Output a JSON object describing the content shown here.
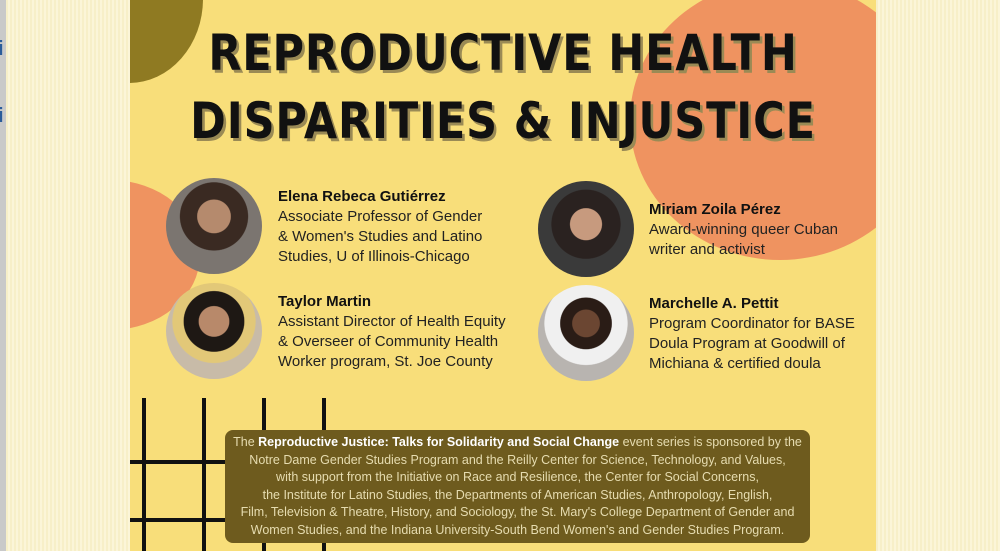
{
  "colors": {
    "poster_bg": "#f8de7a",
    "olive": "#8f7a22",
    "orange": "#ef9360",
    "text_box": "#6e5b1e"
  },
  "viewer": {
    "left_icons": [
      "i",
      "i"
    ]
  },
  "poster": {
    "title_line1": "REPRODUCTIVE HEALTH",
    "title_line2": "DISPARITIES & INJUSTICE",
    "speakers": [
      {
        "name": "Elena Rebeca Gutiérrez",
        "desc": [
          "Associate Professor of Gender",
          "& Women's Studies and Latino",
          "Studies, U of Illinois-Chicago"
        ]
      },
      {
        "name": "Miriam Zoila Pérez",
        "desc": [
          "Award-winning queer Cuban",
          "writer and activist"
        ]
      },
      {
        "name": "Taylor Martin",
        "desc": [
          "Assistant Director of Health Equity",
          "& Overseer of Community Health",
          "Worker program, St. Joe County"
        ]
      },
      {
        "name": "Marchelle A. Pettit",
        "desc": [
          "Program Coordinator for BASE",
          "Doula Program at Goodwill of",
          "Michiana & certified doula"
        ]
      }
    ],
    "sponsor": {
      "pre": "The ",
      "series": "Reproductive Justice: Talks for Solidarity and Social Change",
      "lines": [
        " event series is sponsored by the",
        "Notre Dame Gender Studies Program and the Reilly Center for Science, Technology, and Values,",
        "with support from the Initiative on Race and Resilience, the Center for Social Concerns,",
        "the Institute for Latino Studies, the Departments of American Studies, Anthropology, English,",
        "Film, Television & Theatre, History, and Sociology, the St. Mary's College Department of Gender and",
        "Women Studies, and the Indiana University-South Bend Women's and Gender Studies Program."
      ]
    }
  }
}
